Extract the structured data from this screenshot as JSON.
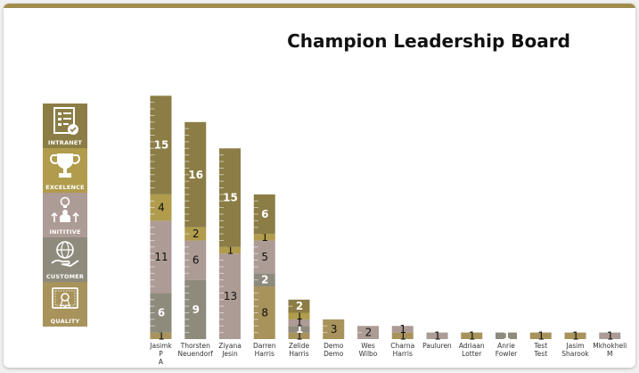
{
  "title": "Champion Leadership Board",
  "legend": [
    {
      "key": "intranet",
      "label": "INTRANET",
      "icon": "intranet-checklist-icon",
      "color": "#8b7d45"
    },
    {
      "key": "excellence",
      "label": "EXCELENCE",
      "icon": "trophy-icon",
      "color": "#b09c4c"
    },
    {
      "key": "initiative",
      "label": "INITITIVE",
      "icon": "lightbulb-person-icon",
      "color": "#ad9b95"
    },
    {
      "key": "customer",
      "label": "CUSTOMER",
      "icon": "globe-hand-icon",
      "color": "#8e8a7c"
    },
    {
      "key": "quality",
      "label": "QUALITY",
      "icon": "certificate-icon",
      "color": "#a8935c"
    }
  ],
  "chart_data": {
    "type": "bar",
    "stacked": true,
    "categories": [
      [
        "Jasimk",
        "P",
        "A"
      ],
      [
        "Thorsten",
        "Neuendorf"
      ],
      [
        "Ziyana",
        "Jesin"
      ],
      [
        "Darren",
        "Harris"
      ],
      [
        "Zelide",
        "Harris"
      ],
      [
        "Demo",
        "Demo"
      ],
      [
        "Wes",
        "Wilbo"
      ],
      [
        "Charna",
        "Harris"
      ],
      [
        "Pauluren"
      ],
      [
        "Adriaan",
        "Lotter"
      ],
      [
        "Anrie",
        "Fowler"
      ],
      [
        "Test",
        "Test"
      ],
      [
        "Jasim",
        "Sharook"
      ],
      [
        "Mkhokheli",
        "M"
      ]
    ],
    "series": [
      {
        "key": "quality",
        "color": "#a8935c",
        "values": [
          1,
          0,
          0,
          8,
          1,
          3,
          0,
          1,
          0,
          1,
          0,
          1,
          1,
          0
        ]
      },
      {
        "key": "customer",
        "color": "#8e8a7c",
        "values": [
          6,
          9,
          0,
          2,
          1,
          0,
          0,
          0,
          0,
          0,
          1,
          0,
          0,
          0
        ]
      },
      {
        "key": "initiative",
        "color": "#ad9b95",
        "values": [
          11,
          6,
          13,
          5,
          1,
          0,
          2,
          1,
          1,
          0,
          0,
          0,
          0,
          1
        ]
      },
      {
        "key": "excellence",
        "color": "#b09c4c",
        "values": [
          4,
          2,
          1,
          1,
          1,
          0,
          0,
          0,
          0,
          0,
          0,
          0,
          0,
          0
        ]
      },
      {
        "key": "intranet",
        "color": "#8b7d45",
        "values": [
          15,
          16,
          15,
          6,
          2,
          0,
          0,
          0,
          0,
          0,
          0,
          0,
          0,
          0
        ]
      }
    ],
    "grid": false,
    "legend_placement": "left"
  }
}
